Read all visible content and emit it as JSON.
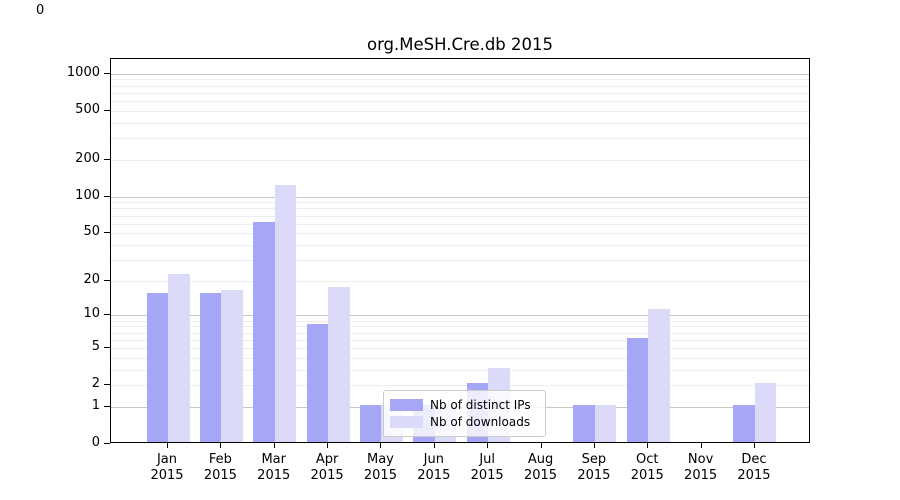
{
  "page": {
    "stray_top_left_label": "0"
  },
  "chart_data": {
    "type": "bar",
    "title": "org.MeSH.Cre.db 2015",
    "x_tick_year": "2015",
    "categories": [
      "Jan",
      "Feb",
      "Mar",
      "Apr",
      "May",
      "Jun",
      "Jul",
      "Aug",
      "Sep",
      "Oct",
      "Nov",
      "Dec"
    ],
    "series": [
      {
        "name": "Nb of distinct IPs",
        "color": "#a6a6f6",
        "values": [
          15,
          15,
          60,
          8,
          1,
          1,
          2,
          0,
          1,
          6,
          0,
          1
        ]
      },
      {
        "name": "Nb of downloads",
        "color": "#dbdbf9",
        "values": [
          22,
          16,
          120,
          17,
          1,
          1,
          3,
          0,
          1,
          11,
          0,
          2
        ]
      }
    ],
    "y_scale": "log10(1+x)",
    "y_ticks": [
      0,
      1,
      2,
      5,
      10,
      20,
      50,
      100,
      200,
      500,
      1000
    ],
    "ylim": [
      0,
      1300
    ],
    "grid": true,
    "legend_position": "lower-center-inside"
  }
}
